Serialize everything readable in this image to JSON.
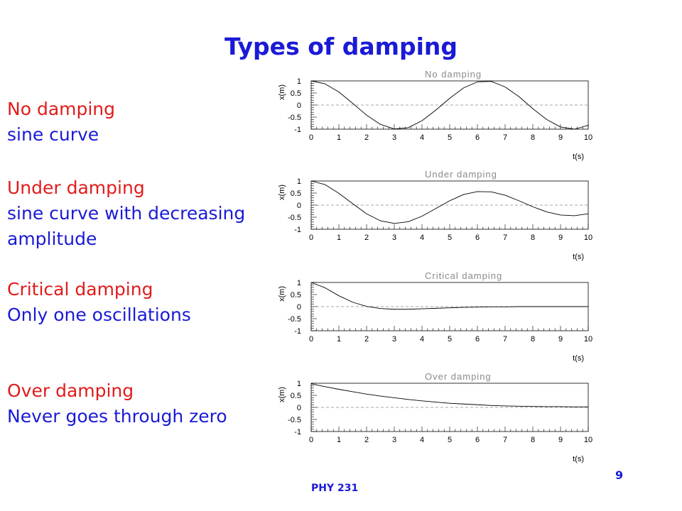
{
  "slide": {
    "title": "Types of damping",
    "footer": "PHY 231",
    "page_number": "9"
  },
  "descriptions": [
    {
      "heading": "No damping",
      "lines": [
        "sine curve"
      ]
    },
    {
      "heading": "Under damping",
      "lines": [
        "sine curve with decreasing",
        "amplitude"
      ]
    },
    {
      "heading": "Critical damping",
      "lines": [
        "Only one oscillations"
      ]
    },
    {
      "heading": "Over damping",
      "lines": [
        "Never goes through zero"
      ]
    }
  ],
  "colors": {
    "title": "#1a1ad6",
    "heading": "#e01c1c",
    "detail": "#1a1ad6",
    "curve": "#000000",
    "zero_line": "#888888",
    "plot_title": "#8a8a8a"
  },
  "chart_data": [
    {
      "type": "line",
      "title": "No damping",
      "xlabel": "t(s)",
      "ylabel": "x(m)",
      "xlim": [
        0,
        10
      ],
      "ylim": [
        -1,
        1
      ],
      "x_ticks": [
        0,
        1,
        2,
        3,
        4,
        5,
        6,
        7,
        8,
        9,
        10
      ],
      "y_tick_labels": [
        "1",
        "0.5",
        "0",
        "-0.5",
        "-1"
      ],
      "zero_line": true,
      "series": [
        {
          "x": [
            0,
            0.5,
            1,
            1.5,
            2,
            2.5,
            3,
            3.5,
            4,
            4.5,
            5,
            5.5,
            6,
            6.5,
            7,
            7.5,
            8,
            8.5,
            9,
            9.5,
            10
          ],
          "y": [
            1.0,
            0.88,
            0.54,
            0.07,
            -0.42,
            -0.8,
            -0.99,
            -0.94,
            -0.65,
            -0.21,
            0.28,
            0.71,
            0.96,
            0.98,
            0.75,
            0.35,
            -0.15,
            -0.6,
            -0.91,
            -1.0,
            -0.84
          ]
        }
      ]
    },
    {
      "type": "line",
      "title": "Under damping",
      "xlabel": "t(s)",
      "ylabel": "x(m)",
      "xlim": [
        0,
        10
      ],
      "ylim": [
        -1,
        1
      ],
      "x_ticks": [
        0,
        1,
        2,
        3,
        4,
        5,
        6,
        7,
        8,
        9,
        10
      ],
      "y_tick_labels": [
        "1",
        "0.5",
        "0",
        "-0.5",
        "-1"
      ],
      "zero_line": true,
      "series": [
        {
          "x": [
            0,
            0.5,
            1,
            1.5,
            2,
            2.5,
            3,
            3.5,
            4,
            4.5,
            5,
            5.5,
            6,
            6.5,
            7,
            7.5,
            8,
            8.5,
            9,
            9.5,
            10
          ],
          "y": [
            1.0,
            0.85,
            0.49,
            0.06,
            -0.36,
            -0.65,
            -0.76,
            -0.69,
            -0.46,
            -0.14,
            0.18,
            0.44,
            0.56,
            0.55,
            0.41,
            0.18,
            -0.07,
            -0.28,
            -0.41,
            -0.44,
            -0.36
          ]
        }
      ]
    },
    {
      "type": "line",
      "title": "Critical damping",
      "xlabel": "t(s)",
      "ylabel": "x(m)",
      "xlim": [
        0,
        10
      ],
      "ylim": [
        -1,
        1
      ],
      "x_ticks": [
        0,
        1,
        2,
        3,
        4,
        5,
        6,
        7,
        8,
        9,
        10
      ],
      "y_tick_labels": [
        "1",
        "0.5",
        "0",
        "-0.5",
        "-1"
      ],
      "zero_line": true,
      "series": [
        {
          "x": [
            0,
            0.5,
            1,
            1.5,
            2,
            2.5,
            3,
            3.5,
            4,
            4.5,
            5,
            5.5,
            6,
            6.5,
            7,
            7.5,
            8,
            8.5,
            9,
            9.5,
            10
          ],
          "y": [
            1.0,
            0.78,
            0.45,
            0.18,
            0.01,
            -0.08,
            -0.11,
            -0.11,
            -0.09,
            -0.07,
            -0.05,
            -0.03,
            -0.02,
            -0.01,
            -0.01,
            0.0,
            0.0,
            0.0,
            0.0,
            0.0,
            0.0
          ]
        }
      ]
    },
    {
      "type": "line",
      "title": "Over damping",
      "xlabel": "t(s)",
      "ylabel": "x(m)",
      "xlim": [
        0,
        10
      ],
      "ylim": [
        -1,
        1
      ],
      "x_ticks": [
        0,
        1,
        2,
        3,
        4,
        5,
        6,
        7,
        8,
        9,
        10
      ],
      "y_tick_labels": [
        "1",
        "0.5",
        "0",
        "-0.5",
        "-1"
      ],
      "zero_line": true,
      "series": [
        {
          "x": [
            0,
            0.5,
            1,
            1.5,
            2,
            2.5,
            3,
            3.5,
            4,
            4.5,
            5,
            5.5,
            6,
            6.5,
            7,
            7.5,
            8,
            8.5,
            9,
            9.5,
            10
          ],
          "y": [
            0.98,
            0.86,
            0.75,
            0.65,
            0.55,
            0.47,
            0.4,
            0.33,
            0.27,
            0.22,
            0.17,
            0.14,
            0.11,
            0.08,
            0.06,
            0.05,
            0.04,
            0.03,
            0.03,
            0.02,
            0.02
          ]
        }
      ]
    }
  ]
}
